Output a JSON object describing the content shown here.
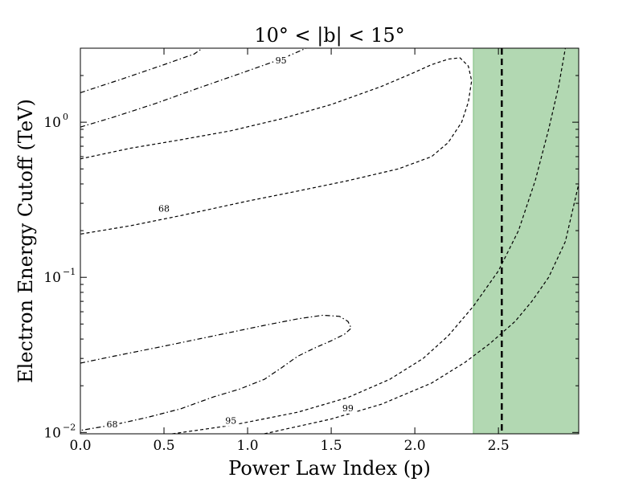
{
  "chart_data": {
    "type": "line",
    "title": "10° < |b| < 15°",
    "xlabel": "Power Law Index (p)",
    "ylabel": "Electron Energy Cutoff (TeV)",
    "xlim": [
      0.0,
      2.98
    ],
    "ylim": [
      0.0098,
      3.0
    ],
    "yscale": "log",
    "x_ticks": [
      {
        "v": 0.0,
        "label": "0.0"
      },
      {
        "v": 0.5,
        "label": "0.5"
      },
      {
        "v": 1.0,
        "label": "1.0"
      },
      {
        "v": 1.5,
        "label": "1.5"
      },
      {
        "v": 2.0,
        "label": "2.0"
      },
      {
        "v": 2.5,
        "label": "2.5"
      }
    ],
    "y_ticks": [
      {
        "v": 0.01,
        "base": "10",
        "exp": "−2"
      },
      {
        "v": 0.1,
        "base": "10",
        "exp": "−1"
      },
      {
        "v": 1.0,
        "base": "10",
        "exp": "0"
      }
    ],
    "grid": false,
    "shaded_region": {
      "x0": 2.35,
      "x1": 2.98,
      "color": "#b2d8b2",
      "edge_color": "#7fbf7f"
    },
    "vertical_line": {
      "x": 2.52
    },
    "contours": [
      {
        "style": "dash",
        "points": [
          [
            0.0,
            0.58
          ],
          [
            0.3,
            0.68
          ],
          [
            0.6,
            0.77
          ],
          [
            0.9,
            0.88
          ],
          [
            1.2,
            1.05
          ],
          [
            1.5,
            1.3
          ],
          [
            1.8,
            1.7
          ],
          [
            2.0,
            2.1
          ],
          [
            2.1,
            2.35
          ],
          [
            2.2,
            2.55
          ],
          [
            2.27,
            2.6
          ],
          [
            2.32,
            2.3
          ],
          [
            2.34,
            1.85
          ],
          [
            2.32,
            1.35
          ],
          [
            2.28,
            1.0
          ],
          [
            2.2,
            0.74
          ],
          [
            2.1,
            0.6
          ],
          [
            1.9,
            0.5
          ],
          [
            1.6,
            0.42
          ],
          [
            1.3,
            0.36
          ],
          [
            1.0,
            0.31
          ],
          [
            0.6,
            0.25
          ],
          [
            0.3,
            0.215
          ],
          [
            0.0,
            0.19
          ]
        ]
      },
      {
        "style": "dashdot",
        "points": [
          [
            0.0,
            0.028
          ],
          [
            0.2,
            0.031
          ],
          [
            0.5,
            0.036
          ],
          [
            0.8,
            0.042
          ],
          [
            1.1,
            0.049
          ],
          [
            1.3,
            0.054
          ],
          [
            1.45,
            0.057
          ],
          [
            1.55,
            0.056
          ],
          [
            1.6,
            0.052
          ],
          [
            1.62,
            0.047
          ],
          [
            1.58,
            0.043
          ],
          [
            1.5,
            0.039
          ],
          [
            1.4,
            0.035
          ],
          [
            1.3,
            0.031
          ],
          [
            1.2,
            0.026
          ],
          [
            1.1,
            0.022
          ],
          [
            0.95,
            0.019
          ],
          [
            0.8,
            0.017
          ],
          [
            0.6,
            0.0142
          ],
          [
            0.4,
            0.0125
          ],
          [
            0.2,
            0.0112
          ],
          [
            0.0,
            0.0103
          ]
        ]
      },
      {
        "style": "dashdot",
        "points": [
          [
            0.0,
            0.93
          ],
          [
            0.2,
            1.08
          ],
          [
            0.45,
            1.32
          ],
          [
            0.7,
            1.65
          ],
          [
            0.95,
            2.05
          ],
          [
            1.2,
            2.55
          ],
          [
            1.35,
            3.0
          ]
        ]
      },
      {
        "style": "dashdot",
        "points": [
          [
            0.0,
            1.55
          ],
          [
            0.25,
            1.9
          ],
          [
            0.5,
            2.35
          ],
          [
            0.68,
            2.75
          ],
          [
            0.73,
            3.0
          ]
        ]
      },
      {
        "style": "dash",
        "points": [
          [
            0.55,
            0.0098
          ],
          [
            0.9,
            0.0111
          ],
          [
            1.3,
            0.0135
          ],
          [
            1.6,
            0.0168
          ],
          [
            1.85,
            0.022
          ],
          [
            2.05,
            0.03
          ],
          [
            2.2,
            0.042
          ],
          [
            2.35,
            0.065
          ],
          [
            2.5,
            0.11
          ],
          [
            2.62,
            0.2
          ],
          [
            2.72,
            0.42
          ],
          [
            2.8,
            0.9
          ],
          [
            2.86,
            1.7
          ],
          [
            2.9,
            3.0
          ]
        ]
      },
      {
        "style": "dash",
        "points": [
          [
            1.1,
            0.0098
          ],
          [
            1.5,
            0.0122
          ],
          [
            1.8,
            0.0152
          ],
          [
            2.1,
            0.0208
          ],
          [
            2.3,
            0.0283
          ],
          [
            2.45,
            0.0375
          ],
          [
            2.6,
            0.052
          ],
          [
            2.7,
            0.07
          ],
          [
            2.8,
            0.1
          ],
          [
            2.9,
            0.17
          ],
          [
            2.98,
            0.4
          ]
        ]
      }
    ],
    "contour_labels": [
      {
        "text": "95",
        "x": 1.2,
        "y": 2.48
      },
      {
        "text": "68",
        "x": 0.5,
        "y": 0.275
      },
      {
        "text": "68",
        "x": 0.19,
        "y": 0.0112
      },
      {
        "text": "95",
        "x": 0.9,
        "y": 0.0118
      },
      {
        "text": "99",
        "x": 1.6,
        "y": 0.0142
      }
    ]
  }
}
